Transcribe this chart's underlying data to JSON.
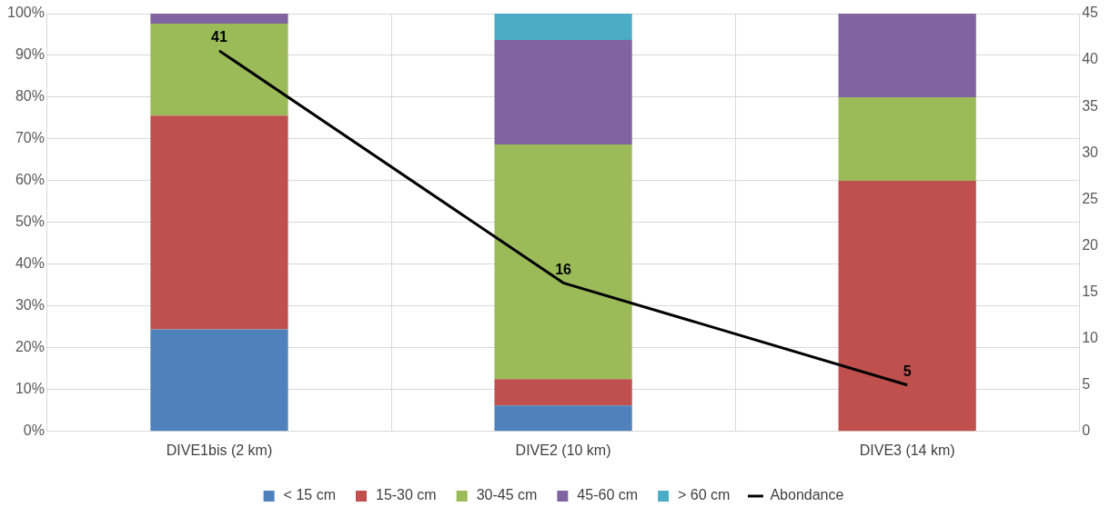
{
  "chart_data": {
    "type": "bar",
    "stacked": true,
    "categories": [
      "DIVE1bis (2 km)",
      "DIVE2 (10 km)",
      "DIVE3 (14 km)"
    ],
    "series": [
      {
        "name": "< 15 cm",
        "color": "#4f81bd",
        "values": [
          24.4,
          6.2,
          0
        ]
      },
      {
        "name": "15-30 cm",
        "color": "#c0504d",
        "values": [
          51.2,
          6.3,
          60
        ]
      },
      {
        "name": "30-45 cm",
        "color": "#9bbb59",
        "values": [
          22.0,
          56.2,
          20
        ]
      },
      {
        "name": "45-60 cm",
        "color": "#8064a2",
        "values": [
          2.4,
          25,
          20
        ]
      },
      {
        "name": "> 60 cm",
        "color": "#4bacc6",
        "values": [
          0,
          6.3,
          0
        ]
      },
      {
        "name": "Abondance",
        "type": "line",
        "axis": "y2",
        "color": "#000000",
        "values": [
          41,
          16,
          5
        ],
        "value_labels": [
          "41",
          "16",
          "5"
        ]
      }
    ],
    "ylim": [
      0,
      100
    ],
    "yticks": [
      {
        "value": 0,
        "label": "0%"
      },
      {
        "value": 10,
        "label": "10%"
      },
      {
        "value": 20,
        "label": "20%"
      },
      {
        "value": 30,
        "label": "30%"
      },
      {
        "value": 40,
        "label": "40%"
      },
      {
        "value": 50,
        "label": "50%"
      },
      {
        "value": 60,
        "label": "60%"
      },
      {
        "value": 70,
        "label": "70%"
      },
      {
        "value": 80,
        "label": "80%"
      },
      {
        "value": 90,
        "label": "90%"
      },
      {
        "value": 100,
        "label": "100%"
      }
    ],
    "y2lim": [
      0,
      45
    ],
    "y2ticks": [
      0,
      5,
      10,
      15,
      20,
      25,
      30,
      35,
      40,
      45
    ],
    "grid": true,
    "legend": "bottom",
    "marker": "none",
    "line_style": "solid"
  }
}
